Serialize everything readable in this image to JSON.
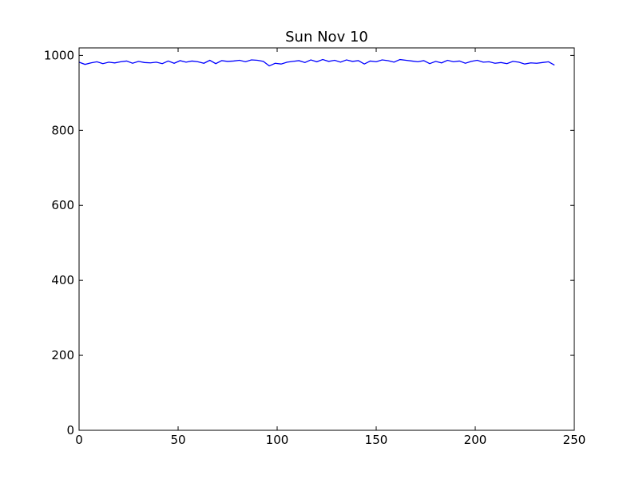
{
  "chart_data": {
    "type": "line",
    "title": "Sun Nov 10",
    "x": [
      0,
      3,
      6,
      9,
      12,
      15,
      18,
      21,
      24,
      27,
      30,
      33,
      36,
      39,
      42,
      45,
      48,
      51,
      54,
      57,
      60,
      63,
      66,
      69,
      72,
      75,
      78,
      81,
      84,
      87,
      90,
      93,
      96,
      99,
      102,
      105,
      108,
      111,
      114,
      117,
      120,
      123,
      126,
      129,
      132,
      135,
      138,
      141,
      144,
      147,
      150,
      153,
      156,
      159,
      162,
      165,
      168,
      171,
      174,
      177,
      180,
      183,
      186,
      189,
      192,
      195,
      198,
      201,
      204,
      207,
      210,
      213,
      216,
      219,
      222,
      225,
      228,
      231,
      234,
      237,
      240
    ],
    "series": [
      {
        "color": "#0000ff",
        "values": [
          982,
          976,
          980,
          983,
          978,
          982,
          980,
          983,
          985,
          979,
          984,
          981,
          980,
          982,
          978,
          985,
          979,
          986,
          982,
          985,
          983,
          979,
          987,
          978,
          986,
          984,
          985,
          987,
          983,
          988,
          987,
          984,
          972,
          979,
          977,
          982,
          984,
          986,
          981,
          988,
          983,
          989,
          984,
          987,
          982,
          988,
          984,
          986,
          977,
          985,
          983,
          988,
          986,
          982,
          989,
          987,
          985,
          983,
          986,
          978,
          984,
          980,
          987,
          983,
          985,
          979,
          984,
          987,
          982,
          983,
          979,
          981,
          978,
          984,
          982,
          977,
          980,
          979,
          981,
          983,
          974
        ]
      }
    ],
    "xlim": [
      0,
      250
    ],
    "xticks": [
      0,
      50,
      100,
      150,
      200,
      250
    ],
    "ylim": [
      0,
      1020
    ],
    "yticks": [
      0,
      200,
      400,
      600,
      800,
      1000
    ],
    "grid": false
  }
}
